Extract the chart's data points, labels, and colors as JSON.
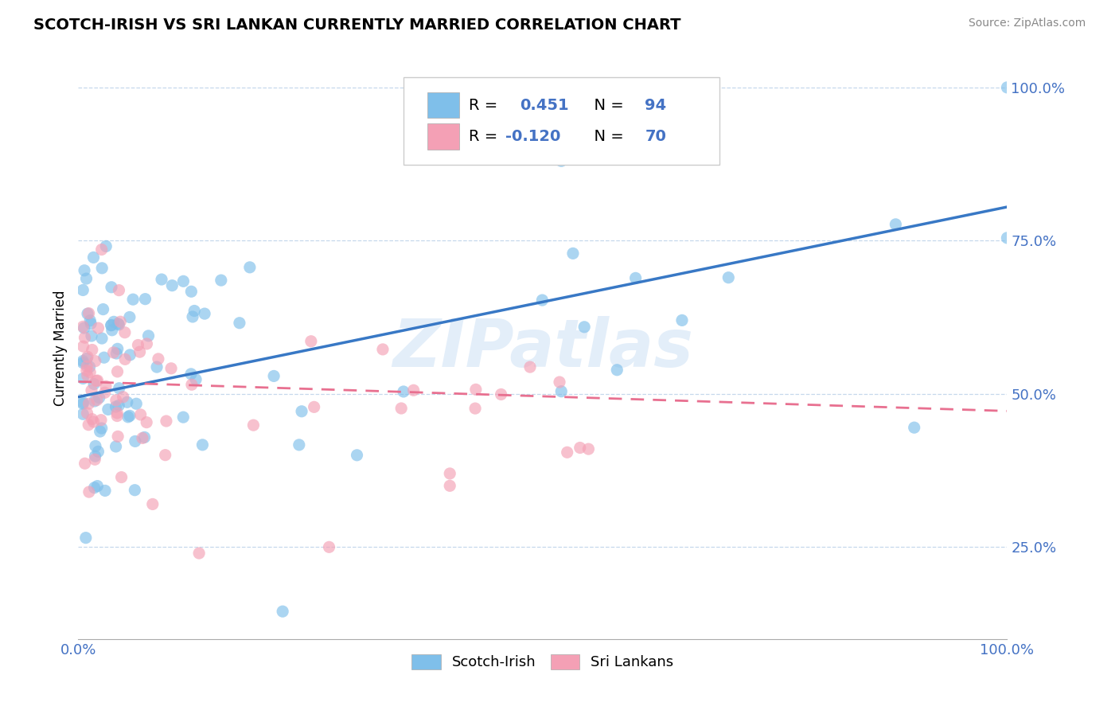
{
  "title": "SCOTCH-IRISH VS SRI LANKAN CURRENTLY MARRIED CORRELATION CHART",
  "source": "Source: ZipAtlas.com",
  "ylabel": "Currently Married",
  "xlim": [
    0.0,
    1.0
  ],
  "ylim": [
    0.1,
    1.05
  ],
  "yticks": [
    0.25,
    0.5,
    0.75,
    1.0
  ],
  "ytick_labels": [
    "25.0%",
    "50.0%",
    "75.0%",
    "100.0%"
  ],
  "color_blue": "#7fbfea",
  "color_pink": "#f4a0b5",
  "line_blue": "#3878c5",
  "line_pink": "#e87090",
  "watermark": "ZIPatlas",
  "blue_line_y0": 0.495,
  "blue_line_y1": 0.805,
  "pink_line_y0": 0.52,
  "pink_line_y1": 0.472,
  "seed": 77
}
